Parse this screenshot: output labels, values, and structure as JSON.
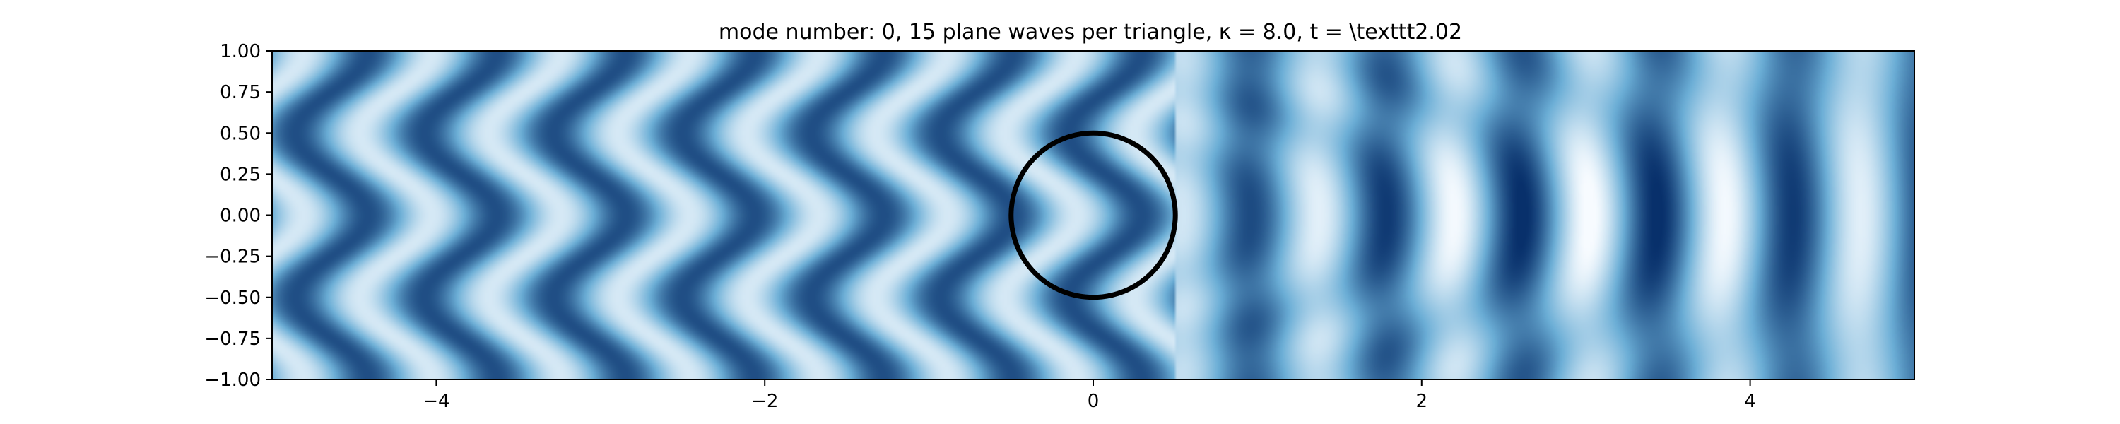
{
  "chart_data": {
    "type": "heatmap",
    "title": "mode number: 0, 15 plane waves per triangle, κ = 8.0, t =  \\texttt2.02",
    "xlabel": "",
    "ylabel": "",
    "xlim": [
      -5,
      5
    ],
    "ylim": [
      -1,
      1
    ],
    "xticks": [
      -4,
      -2,
      0,
      2,
      4
    ],
    "xtick_labels": [
      "−4",
      "−2",
      "0",
      "2",
      "4"
    ],
    "yticks": [
      1.0,
      0.75,
      0.5,
      0.25,
      0.0,
      -0.25,
      -0.5,
      -0.75,
      -1.0
    ],
    "ytick_labels": [
      "1.00",
      "0.75",
      "0.50",
      "0.25",
      "0.00",
      "−0.25",
      "−0.50",
      "−0.75",
      "−1.00"
    ],
    "colormap": "Blues",
    "colors": {
      "light": "#f7fbff",
      "mid": "#6baed6",
      "dark": "#08306b",
      "axis": "#000000"
    },
    "field": {
      "description_key": "wave field intensity",
      "incident_wavenumber": 8.0,
      "mode_number": 0,
      "time": 2.02
    },
    "scatterer": {
      "shape": "circle",
      "center": [
        0,
        0
      ],
      "radius": 0.5,
      "color": "#000000"
    },
    "grid": false,
    "legend": "none"
  }
}
